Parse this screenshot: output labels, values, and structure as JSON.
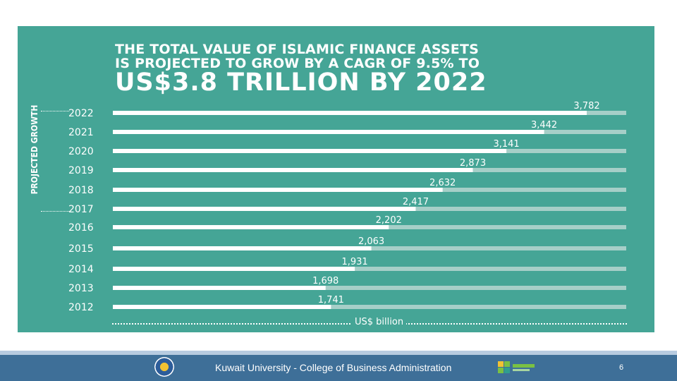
{
  "slide": {
    "title_line1": "THE TOTAL VALUE OF ISLAMIC FINANCE ASSETS",
    "title_line2": "IS PROJECTED TO GROW BY A CAGR OF 9.5% TO",
    "title_line3": "US$3.8 TRILLION BY 2022",
    "side_label": "PROJECTED GROWTH",
    "axis_label": "US$ billion",
    "footer_text": "Kuwait University - College of Business Administration",
    "page_number": "6"
  },
  "colors": {
    "panel": "#45a596",
    "bar": "#ffffff",
    "track": "#a6cfc8",
    "footer": "#3e6f98",
    "text": "#ffffff"
  },
  "icons": {
    "seal": "kuwait-university-seal-icon",
    "logo": "college-logo-icon"
  },
  "chart_data": {
    "type": "bar",
    "orientation": "horizontal",
    "categories": [
      "2022",
      "2021",
      "2020",
      "2019",
      "2018",
      "2017",
      "2016",
      "2015",
      "2014",
      "2013",
      "2012"
    ],
    "values": [
      3782,
      3442,
      3141,
      2873,
      2632,
      2417,
      2202,
      2063,
      1931,
      1698,
      1741
    ],
    "value_labels": [
      "3,782",
      "3,442",
      "3,141",
      "2,873",
      "2,632",
      "2,417",
      "2,202",
      "2,063",
      "1,931",
      "1,698",
      "1,741"
    ],
    "title": "THE TOTAL VALUE OF ISLAMIC FINANCE ASSETS IS PROJECTED TO GROW BY A CAGR OF 9.5% TO US$3.8 TRILLION BY 2022",
    "xlabel": "US$ billion",
    "ylabel": "PROJECTED GROWTH",
    "grid": false,
    "legend": "none"
  }
}
